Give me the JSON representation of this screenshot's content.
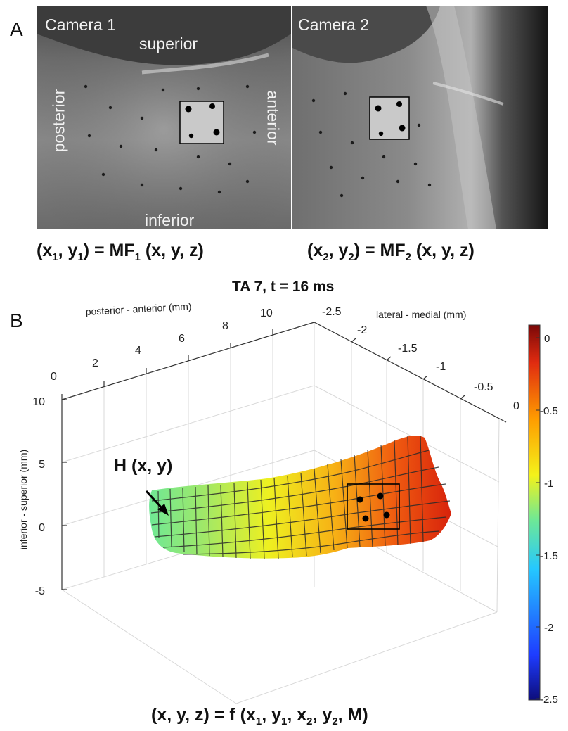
{
  "panel_a": {
    "letter": "A",
    "camera1": {
      "label": "Camera 1",
      "superior": "superior",
      "posterior": "posterior",
      "anterior": "anterior",
      "inferior": "inferior"
    },
    "camera2": {
      "label": "Camera 2"
    },
    "eq1": {
      "lhs_open": "(x",
      "sub1": "1",
      "mid": ", y",
      "sub2": "1",
      "rhs_a": ") = MF",
      "sub3": "1",
      "rhs_b": " (x, y, z)"
    },
    "eq2": {
      "lhs_open": "(x",
      "sub1": "2",
      "mid": ", y",
      "sub2": "2",
      "rhs_a": ") = MF",
      "sub3": "2",
      "rhs_b": " (x, y, z)"
    }
  },
  "panel_b": {
    "letter": "B",
    "title": "TA 7, t = 16 ms",
    "x_axis_label": "posterior - anterior (mm)",
    "x_ticks": [
      "0",
      "2",
      "4",
      "6",
      "8",
      "10"
    ],
    "y_axis_label": "lateral - medial (mm)",
    "y_ticks": [
      "-2.5",
      "-2",
      "-1.5",
      "-1",
      "-0.5",
      "0"
    ],
    "z_axis_label": "inferior - superior (mm)",
    "z_ticks": [
      "10",
      "5",
      "0",
      "-5"
    ],
    "surface_label": "H (x, y)",
    "colorbar_ticks": [
      "0",
      "-0.5",
      "-1",
      "-1.5",
      "-2",
      "-2.5"
    ],
    "equation": {
      "open": "(x, y, z) = f (x",
      "s1": "1",
      "a": ", y",
      "s2": "1",
      "b": ", x",
      "s3": "2",
      "c": ", y",
      "s4": "2",
      "d": ", M)"
    }
  },
  "colors": {
    "colormap": [
      "#0d0d7a",
      "#1e3cff",
      "#25c8ff",
      "#6ee896",
      "#f4f21a",
      "#ff9c00",
      "#e02b10",
      "#7a0808"
    ],
    "overlay_text": "#f2f2f2"
  }
}
